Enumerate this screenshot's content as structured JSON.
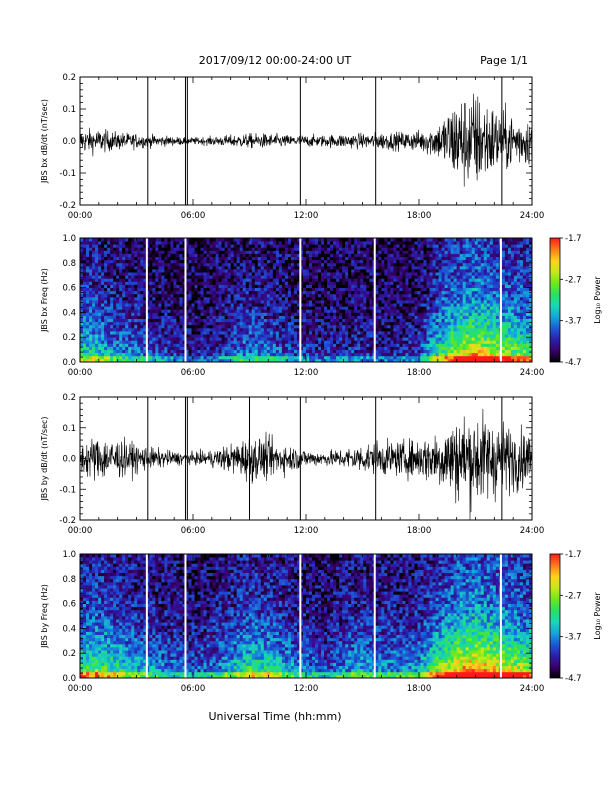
{
  "header": {
    "date_range": "2017/09/12  00:00-24:00 UT",
    "page": "Page 1/1"
  },
  "footer": {
    "xlabel": "Universal Time (hh:mm)"
  },
  "colors": {
    "trace": "#000000",
    "gap_lines": "#ffffff",
    "colormap": [
      "#000000",
      "#3a006a",
      "#2a1fb0",
      "#1b5bd8",
      "#15a6d8",
      "#19d8b5",
      "#29e060",
      "#6fe81a",
      "#c7e81a",
      "#ffd21a",
      "#ff7a1a",
      "#ff1a1a"
    ]
  },
  "chart_data": [
    {
      "type": "line",
      "ylabel": "JBS bx dB/dt (nT/sec)",
      "xlim": [
        0,
        24
      ],
      "ylim": [
        -0.2,
        0.2
      ],
      "xticks": [
        "00:00",
        "06:00",
        "12:00",
        "18:00",
        "24:00"
      ],
      "yticks": [
        "-0.2",
        "-0.1",
        "0.0",
        "0.1",
        "0.2"
      ],
      "envelope": {
        "hours": [
          0,
          1,
          2,
          3,
          4,
          5,
          6,
          7,
          8,
          9,
          10,
          11,
          12,
          13,
          14,
          15,
          16,
          17,
          18,
          19,
          20,
          21,
          22,
          23,
          24
        ],
        "amplitude": [
          0.04,
          0.04,
          0.03,
          0.025,
          0.02,
          0.015,
          0.012,
          0.015,
          0.02,
          0.025,
          0.025,
          0.02,
          0.02,
          0.02,
          0.025,
          0.025,
          0.03,
          0.03,
          0.035,
          0.06,
          0.15,
          0.17,
          0.12,
          0.09,
          0.08
        ]
      },
      "spikes_hours": [
        3.6,
        5.6,
        5.7,
        11.7,
        15.7,
        22.4
      ]
    },
    {
      "type": "heatmap",
      "ylabel": "JBS bx Freq (Hz)",
      "xlim": [
        0,
        24
      ],
      "ylim": [
        0.0,
        1.0
      ],
      "xticks": [
        "00:00",
        "06:00",
        "12:00",
        "18:00",
        "24:00"
      ],
      "yticks": [
        "0.0",
        "0.2",
        "0.4",
        "0.6",
        "0.8",
        "1.0"
      ],
      "colorbar": {
        "label": "Log₁₀ Power",
        "ticks": [
          "-1.7",
          "-2.7",
          "-3.7",
          "-4.7"
        ],
        "range": [
          -4.7,
          -1.7
        ]
      },
      "activity_profile": {
        "hours": [
          0,
          1,
          2,
          3,
          4,
          5,
          6,
          7,
          8,
          9,
          10,
          11,
          12,
          13,
          14,
          15,
          16,
          17,
          18,
          19,
          20,
          21,
          22,
          23,
          24
        ],
        "level": [
          0.45,
          0.4,
          0.3,
          0.25,
          0.2,
          0.15,
          0.1,
          0.12,
          0.2,
          0.3,
          0.25,
          0.2,
          0.15,
          0.12,
          0.15,
          0.15,
          0.12,
          0.12,
          0.18,
          0.45,
          0.7,
          0.8,
          0.7,
          0.6,
          0.55
        ]
      },
      "gap_lines_hours": [
        3.55,
        5.6,
        11.7,
        15.65,
        22.35
      ]
    },
    {
      "type": "line",
      "ylabel": "JBS by dB/dt (nT/sec)",
      "xlim": [
        0,
        24
      ],
      "ylim": [
        -0.2,
        0.2
      ],
      "xticks": [
        "00:00",
        "06:00",
        "12:00",
        "18:00",
        "24:00"
      ],
      "yticks": [
        "-0.2",
        "-0.1",
        "0.0",
        "0.1",
        "0.2"
      ],
      "envelope": {
        "hours": [
          0,
          1,
          2,
          3,
          4,
          5,
          6,
          7,
          8,
          9,
          10,
          11,
          12,
          13,
          14,
          15,
          16,
          17,
          18,
          19,
          20,
          21,
          22,
          23,
          24
        ],
        "amplitude": [
          0.06,
          0.08,
          0.07,
          0.05,
          0.035,
          0.025,
          0.02,
          0.03,
          0.05,
          0.08,
          0.07,
          0.05,
          0.03,
          0.025,
          0.035,
          0.05,
          0.06,
          0.06,
          0.07,
          0.1,
          0.15,
          0.17,
          0.14,
          0.11,
          0.09
        ]
      },
      "spikes_hours": [
        3.6,
        5.6,
        5.7,
        9.0,
        11.7,
        15.7,
        22.4
      ]
    },
    {
      "type": "heatmap",
      "ylabel": "JBS by Freq (Hz)",
      "xlim": [
        0,
        24
      ],
      "ylim": [
        0.0,
        1.0
      ],
      "xticks": [
        "00:00",
        "06:00",
        "12:00",
        "18:00",
        "24:00"
      ],
      "yticks": [
        "0.0",
        "0.2",
        "0.4",
        "0.6",
        "0.8",
        "1.0"
      ],
      "colorbar": {
        "label": "Log₁₀ Power",
        "ticks": [
          "-1.7",
          "-2.7",
          "-3.7",
          "-4.7"
        ],
        "range": [
          -4.7,
          -1.7
        ]
      },
      "activity_profile": {
        "hours": [
          0,
          1,
          2,
          3,
          4,
          5,
          6,
          7,
          8,
          9,
          10,
          11,
          12,
          13,
          14,
          15,
          16,
          17,
          18,
          19,
          20,
          21,
          22,
          23,
          24
        ],
        "level": [
          0.55,
          0.55,
          0.45,
          0.35,
          0.3,
          0.25,
          0.2,
          0.25,
          0.35,
          0.5,
          0.45,
          0.35,
          0.25,
          0.2,
          0.3,
          0.35,
          0.3,
          0.3,
          0.35,
          0.6,
          0.8,
          0.9,
          0.8,
          0.7,
          0.6
        ]
      },
      "gap_lines_hours": [
        3.55,
        5.6,
        11.7,
        15.65,
        22.35
      ]
    }
  ]
}
